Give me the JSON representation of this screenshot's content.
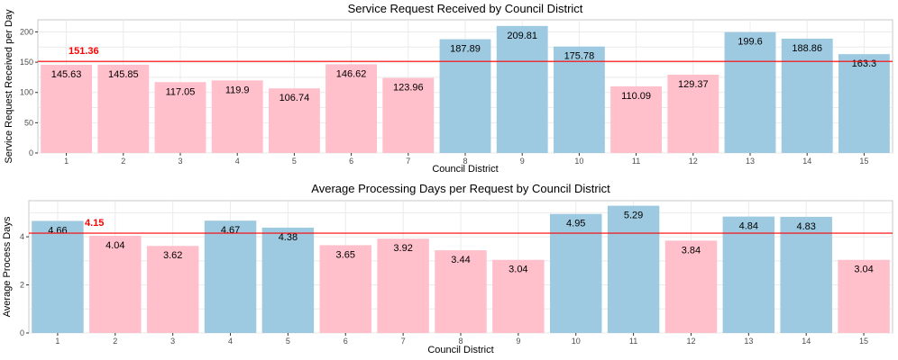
{
  "colors": {
    "above_reference": "#9ecae1",
    "below_reference": "#ffc0cb",
    "reference_line": "#ff0000",
    "grid": "#ebebeb",
    "panel_border": "#c8c8c8"
  },
  "chart_data": [
    {
      "type": "bar",
      "title": "Service Request Received by Council District",
      "xlabel": "Council District",
      "ylabel": "Service Request Received per Day",
      "categories": [
        "1",
        "2",
        "3",
        "4",
        "5",
        "6",
        "7",
        "8",
        "9",
        "10",
        "11",
        "12",
        "13",
        "14",
        "15"
      ],
      "values": [
        145.63,
        145.85,
        117.05,
        119.9,
        106.74,
        146.62,
        123.96,
        187.89,
        209.81,
        175.78,
        110.09,
        129.37,
        199.6,
        188.86,
        163.3
      ],
      "reference_line": 151.36,
      "reference_label": "151.36",
      "ylim": [
        0,
        220
      ],
      "yticks": [
        0,
        50,
        100,
        150,
        200
      ],
      "grid": true,
      "legend": "none"
    },
    {
      "type": "bar",
      "title": "Average Processing Days per Request by Council District",
      "xlabel": "Council District",
      "ylabel": "Average Process Days",
      "categories": [
        "1",
        "2",
        "3",
        "4",
        "5",
        "6",
        "7",
        "8",
        "9",
        "10",
        "11",
        "12",
        "13",
        "14",
        "15"
      ],
      "values": [
        4.66,
        4.04,
        3.62,
        4.67,
        4.38,
        3.65,
        3.92,
        3.44,
        3.04,
        4.95,
        5.29,
        3.84,
        4.84,
        4.83,
        3.04
      ],
      "reference_line": 4.15,
      "reference_label": "4.15",
      "ylim": [
        0,
        5.5
      ],
      "yticks": [
        0,
        2,
        4
      ],
      "grid": true,
      "legend": "none"
    }
  ]
}
